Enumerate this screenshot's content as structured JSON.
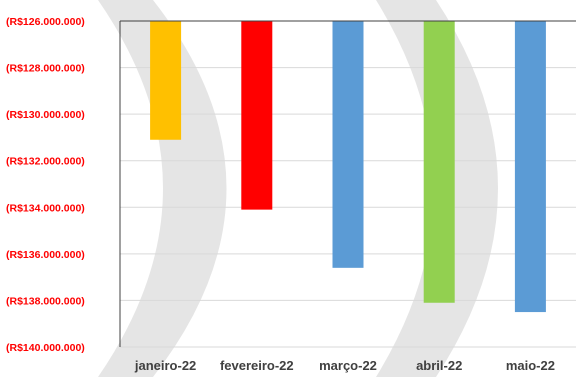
{
  "chart_data": {
    "type": "bar",
    "title": "",
    "xlabel": "",
    "ylabel": "",
    "ylim": [
      -140000000,
      -126000000
    ],
    "ytick_values": [
      -126000000,
      -128000000,
      -130000000,
      -132000000,
      -134000000,
      -136000000,
      -138000000,
      -140000000
    ],
    "ytick_labels": [
      "(R$126.000.000)",
      "(R$128.000.000)",
      "(R$130.000.000)",
      "(R$132.000.000)",
      "(R$134.000.000)",
      "(R$136.000.000)",
      "(R$138.000.000)",
      "(R$140.000.000)"
    ],
    "categories": [
      "janeiro-22",
      "fevereiro-22",
      "março-22",
      "abril-22",
      "maio-22"
    ],
    "values": [
      -131100000,
      -134100000,
      -136600000,
      -138100000,
      -138500000
    ],
    "bar_colors": [
      "#FFC000",
      "#FF0000",
      "#5B9BD5",
      "#92D050",
      "#5B9BD5"
    ],
    "tick_label_color": "#FF0000",
    "category_label_color": "#404040",
    "grid": true,
    "legend": "none"
  }
}
